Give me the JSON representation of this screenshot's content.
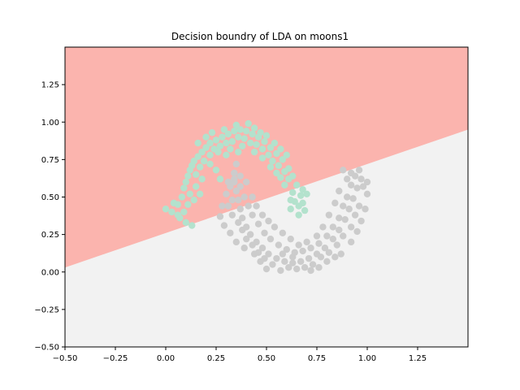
{
  "chart_data": {
    "type": "scatter",
    "title": "Decision boundry of LDA on moons1",
    "xlabel": "",
    "ylabel": "",
    "xlim": [
      -0.5,
      1.5
    ],
    "ylim": [
      -0.5,
      1.5
    ],
    "grid": false,
    "x_ticks": [
      -0.5,
      -0.25,
      0.0,
      0.25,
      0.5,
      0.75,
      1.0,
      1.25
    ],
    "x_tick_labels": [
      "−0.50",
      "−0.25",
      "0.00",
      "0.25",
      "0.50",
      "0.75",
      "1.00",
      "1.25"
    ],
    "y_ticks": [
      -0.5,
      -0.25,
      0.0,
      0.25,
      0.5,
      0.75,
      1.0,
      1.25
    ],
    "y_tick_labels": [
      "−0.50",
      "−0.25",
      "0.00",
      "0.25",
      "0.50",
      "0.75",
      "1.00",
      "1.25"
    ],
    "decision_boundary": {
      "type": "linear",
      "points": [
        [
          -0.5,
          0.03
        ],
        [
          1.5,
          0.95
        ]
      ],
      "upper_region_color": "#fbb4ae",
      "lower_region_color": "#f2f2f2"
    },
    "series": [
      {
        "color": "#b3e2cd",
        "points": [
          [
            0.0,
            0.42
          ],
          [
            0.03,
            0.4
          ],
          [
            0.06,
            0.45
          ],
          [
            0.08,
            0.5
          ],
          [
            0.09,
            0.56
          ],
          [
            0.1,
            0.6
          ],
          [
            0.11,
            0.64
          ],
          [
            0.12,
            0.68
          ],
          [
            0.13,
            0.71
          ],
          [
            0.14,
            0.74
          ],
          [
            0.16,
            0.77
          ],
          [
            0.18,
            0.8
          ],
          [
            0.2,
            0.83
          ],
          [
            0.22,
            0.86
          ],
          [
            0.25,
            0.88
          ],
          [
            0.28,
            0.9
          ],
          [
            0.31,
            0.92
          ],
          [
            0.34,
            0.94
          ],
          [
            0.37,
            0.95
          ],
          [
            0.4,
            0.94
          ],
          [
            0.43,
            0.92
          ],
          [
            0.46,
            0.9
          ],
          [
            0.49,
            0.87
          ],
          [
            0.52,
            0.83
          ],
          [
            0.55,
            0.79
          ],
          [
            0.58,
            0.75
          ],
          [
            0.61,
            0.69
          ],
          [
            0.63,
            0.64
          ],
          [
            0.65,
            0.58
          ],
          [
            0.67,
            0.51
          ],
          [
            0.68,
            0.46
          ],
          [
            0.69,
            0.41
          ],
          [
            0.66,
            0.38
          ],
          [
            0.7,
            0.52
          ],
          [
            0.07,
            0.36
          ],
          [
            0.1,
            0.33
          ],
          [
            0.13,
            0.31
          ],
          [
            0.12,
            0.52
          ],
          [
            0.15,
            0.57
          ],
          [
            0.15,
            0.65
          ],
          [
            0.17,
            0.7
          ],
          [
            0.19,
            0.74
          ],
          [
            0.22,
            0.78
          ],
          [
            0.24,
            0.82
          ],
          [
            0.27,
            0.84
          ],
          [
            0.3,
            0.86
          ],
          [
            0.33,
            0.87
          ],
          [
            0.36,
            0.9
          ],
          [
            0.39,
            0.89
          ],
          [
            0.42,
            0.86
          ],
          [
            0.45,
            0.85
          ],
          [
            0.48,
            0.82
          ],
          [
            0.51,
            0.78
          ],
          [
            0.53,
            0.74
          ],
          [
            0.56,
            0.71
          ],
          [
            0.59,
            0.67
          ],
          [
            0.61,
            0.62
          ],
          [
            0.63,
            0.53
          ],
          [
            0.64,
            0.47
          ],
          [
            0.62,
            0.42
          ],
          [
            0.11,
            0.45
          ],
          [
            0.14,
            0.48
          ],
          [
            0.09,
            0.4
          ],
          [
            0.26,
            0.8
          ],
          [
            0.35,
            0.98
          ],
          [
            0.41,
            0.99
          ],
          [
            0.29,
            0.95
          ],
          [
            0.44,
            0.96
          ],
          [
            0.47,
            0.93
          ],
          [
            0.5,
            0.91
          ],
          [
            0.54,
            0.86
          ],
          [
            0.57,
            0.82
          ],
          [
            0.6,
            0.78
          ],
          [
            0.2,
            0.9
          ],
          [
            0.23,
            0.93
          ],
          [
            0.16,
            0.86
          ],
          [
            0.32,
            0.82
          ],
          [
            0.38,
            0.84
          ],
          [
            0.52,
            0.7
          ],
          [
            0.57,
            0.63
          ],
          [
            0.25,
            0.68
          ],
          [
            0.27,
            0.62
          ],
          [
            0.18,
            0.62
          ],
          [
            0.04,
            0.46
          ],
          [
            0.06,
            0.38
          ],
          [
            0.62,
            0.48
          ],
          [
            0.59,
            0.58
          ],
          [
            0.36,
            0.8
          ],
          [
            0.44,
            0.8
          ],
          [
            0.48,
            0.76
          ],
          [
            0.17,
            0.52
          ],
          [
            0.22,
            0.72
          ],
          [
            0.3,
            0.78
          ],
          [
            0.66,
            0.44
          ],
          [
            0.68,
            0.55
          ],
          [
            0.55,
            0.66
          ]
        ]
      },
      {
        "color": "#cccccc",
        "points": [
          [
            0.35,
            0.72
          ],
          [
            0.34,
            0.66
          ],
          [
            0.34,
            0.6
          ],
          [
            0.35,
            0.54
          ],
          [
            0.36,
            0.48
          ],
          [
            0.37,
            0.42
          ],
          [
            0.38,
            0.36
          ],
          [
            0.4,
            0.3
          ],
          [
            0.42,
            0.25
          ],
          [
            0.45,
            0.2
          ],
          [
            0.48,
            0.16
          ],
          [
            0.51,
            0.12
          ],
          [
            0.55,
            0.09
          ],
          [
            0.59,
            0.07
          ],
          [
            0.63,
            0.06
          ],
          [
            0.67,
            0.07
          ],
          [
            0.71,
            0.09
          ],
          [
            0.75,
            0.12
          ],
          [
            0.79,
            0.16
          ],
          [
            0.83,
            0.22
          ],
          [
            0.86,
            0.28
          ],
          [
            0.89,
            0.35
          ],
          [
            0.91,
            0.42
          ],
          [
            0.93,
            0.49
          ],
          [
            0.95,
            0.56
          ],
          [
            0.97,
            0.62
          ],
          [
            0.98,
            0.57
          ],
          [
            1.0,
            0.52
          ],
          [
            0.96,
            0.44
          ],
          [
            0.94,
            0.38
          ],
          [
            0.92,
            0.3
          ],
          [
            0.88,
            0.24
          ],
          [
            0.85,
            0.18
          ],
          [
            0.81,
            0.13
          ],
          [
            0.77,
            0.1
          ],
          [
            0.73,
            0.05
          ],
          [
            0.69,
            0.03
          ],
          [
            0.65,
            0.02
          ],
          [
            0.61,
            0.03
          ],
          [
            0.57,
            0.01
          ],
          [
            0.53,
            0.05
          ],
          [
            0.49,
            0.09
          ],
          [
            0.46,
            0.13
          ],
          [
            0.43,
            0.18
          ],
          [
            0.4,
            0.22
          ],
          [
            0.38,
            0.28
          ],
          [
            0.36,
            0.33
          ],
          [
            0.33,
            0.38
          ],
          [
            0.31,
            0.44
          ],
          [
            0.3,
            0.52
          ],
          [
            0.32,
            0.57
          ],
          [
            0.34,
            0.62
          ],
          [
            0.37,
            0.57
          ],
          [
            0.39,
            0.5
          ],
          [
            0.41,
            0.44
          ],
          [
            0.43,
            0.38
          ],
          [
            0.46,
            0.32
          ],
          [
            0.49,
            0.26
          ],
          [
            0.52,
            0.22
          ],
          [
            0.56,
            0.18
          ],
          [
            0.6,
            0.15
          ],
          [
            0.64,
            0.13
          ],
          [
            0.68,
            0.14
          ],
          [
            0.72,
            0.16
          ],
          [
            0.76,
            0.19
          ],
          [
            0.8,
            0.24
          ],
          [
            0.83,
            0.3
          ],
          [
            0.86,
            0.36
          ],
          [
            0.88,
            0.44
          ],
          [
            0.9,
            0.5
          ],
          [
            0.92,
            0.58
          ],
          [
            0.94,
            0.64
          ],
          [
            0.9,
            0.62
          ],
          [
            0.86,
            0.54
          ],
          [
            0.84,
            0.46
          ],
          [
            0.81,
            0.38
          ],
          [
            0.78,
            0.3
          ],
          [
            0.75,
            0.24
          ],
          [
            0.7,
            0.2
          ],
          [
            0.66,
            0.18
          ],
          [
            0.62,
            0.22
          ],
          [
            0.58,
            0.26
          ],
          [
            0.54,
            0.3
          ],
          [
            0.51,
            0.34
          ],
          [
            0.48,
            0.38
          ],
          [
            0.45,
            0.44
          ],
          [
            0.43,
            0.5
          ],
          [
            0.28,
            0.44
          ],
          [
            0.27,
            0.37
          ],
          [
            0.29,
            0.31
          ],
          [
            0.32,
            0.26
          ],
          [
            0.35,
            0.2
          ],
          [
            0.39,
            0.16
          ],
          [
            0.44,
            0.12
          ],
          [
            0.47,
            0.07
          ],
          [
            0.63,
            0.1
          ],
          [
            0.72,
            0.01
          ],
          [
            0.8,
            0.07
          ],
          [
            0.87,
            0.12
          ],
          [
            0.92,
            0.2
          ],
          [
            0.95,
            0.27
          ],
          [
            0.97,
            0.34
          ],
          [
            0.99,
            0.42
          ],
          [
            1.0,
            0.6
          ],
          [
            0.96,
            0.68
          ],
          [
            0.92,
            0.66
          ],
          [
            0.88,
            0.68
          ],
          [
            0.37,
            0.64
          ],
          [
            0.4,
            0.6
          ],
          [
            0.31,
            0.6
          ],
          [
            0.33,
            0.48
          ],
          [
            0.58,
            0.12
          ],
          [
            0.5,
            0.02
          ],
          [
            0.76,
            0.03
          ],
          [
            0.84,
            0.1
          ]
        ]
      }
    ]
  }
}
